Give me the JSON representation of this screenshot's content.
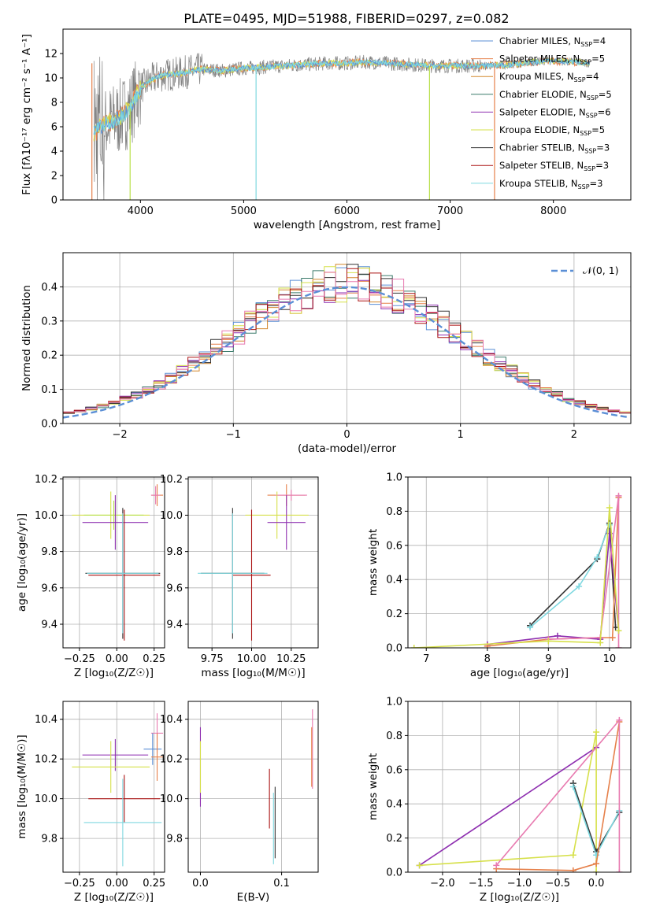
{
  "figure": {
    "title": "PLATE=0495, MJD=51988, FIBERID=0297, z=0.082"
  },
  "colors": {
    "chabrier_miles": "#5b8fd6",
    "salpeter_miles": "#e6804a",
    "kroupa_miles": "#d4882e",
    "chabrier_elodie": "#3a7a6a",
    "salpeter_elodie": "#8e2fb0",
    "kroupa_elodie": "#d6e04a",
    "chabrier_stelib": "#333333",
    "salpeter_stelib": "#aa1111",
    "kroupa_stelib": "#7fd8e0",
    "gray_data": "#808080",
    "pink": "#e87ab0",
    "lime": "#b8e04a",
    "gaussian": "#5b8fd6"
  },
  "chart_data": [
    {
      "id": "spectrum",
      "type": "line",
      "xlabel": "wavelength [Angstrom, rest frame]",
      "ylabel": "Flux [fλ10⁻¹⁷ erg cm⁻² s⁻¹ A⁻¹]",
      "xlim": [
        3250,
        8750
      ],
      "ylim": [
        0,
        14
      ],
      "xticks": [
        "4000",
        "5000",
        "6000",
        "7000",
        "8000"
      ],
      "yticks": [
        "0",
        "2",
        "4",
        "6",
        "8",
        "10",
        "12"
      ],
      "legend_position": "top-right",
      "legend": [
        "Chabrier MILES, N_SSP=4",
        "Salpeter MILES, N_SSP=5",
        "Kroupa MILES, N_SSP=4",
        "Chabrier ELODIE, N_SSP=5",
        "Salpeter ELODIE, N_SSP=6",
        "Kroupa ELODIE, N_SSP=5",
        "Chabrier STELIB, N_SSP=3",
        "Salpeter STELIB, N_SSP=3",
        "Kroupa STELIB, N_SSP=3"
      ],
      "continuum": {
        "x": [
          3550,
          3600,
          3700,
          3800,
          3900,
          4000,
          4100,
          4200,
          4300,
          4400,
          4500,
          4600,
          4800,
          5000,
          5200,
          5400,
          5600,
          5800,
          6000,
          6200,
          6400,
          6600,
          6800,
          7000,
          7200,
          7400,
          7600,
          7800,
          8000,
          8200,
          8350
        ],
        "y": [
          5.5,
          6.0,
          6.3,
          6.8,
          7.5,
          9.2,
          9.8,
          10.2,
          10.3,
          10.4,
          10.6,
          10.7,
          10.6,
          10.8,
          10.9,
          11.0,
          11.1,
          11.2,
          11.2,
          11.3,
          11.2,
          11.1,
          11.0,
          11.0,
          11.0,
          11.0,
          11.1,
          11.3,
          11.4,
          11.3,
          11.2
        ]
      }
    },
    {
      "id": "residuals",
      "type": "line",
      "xlabel": "(data-model)/error",
      "ylabel": "Normed distribution",
      "xlim": [
        -2.5,
        2.5
      ],
      "ylim": [
        0,
        0.5
      ],
      "xticks": [
        "−2",
        "−1",
        "0",
        "1",
        "2"
      ],
      "yticks": [
        "0.0",
        "0.1",
        "0.2",
        "0.3",
        "0.4"
      ],
      "grid": true,
      "legend_position": "top-right",
      "legend": [
        "𝒩(0, 1)"
      ],
      "gaussian": {
        "mean": 0,
        "sigma": 1
      }
    },
    {
      "id": "age_vs_Z",
      "type": "scatter",
      "xlabel": "Z [log₁₀(Z/Z☉)]",
      "ylabel": "age  [log₁₀(age/yr)]",
      "xlim": [
        -0.36,
        0.32
      ],
      "ylim": [
        9.27,
        10.21
      ],
      "xticks": [
        "−0.25",
        "0.00",
        "0.25"
      ],
      "yticks": [
        "9.4",
        "9.6",
        "9.8",
        "10.0",
        "10.2"
      ],
      "grid": true,
      "points": [
        {
          "x": 0.27,
          "y": 10.11,
          "xerr": 0.04,
          "yerr": 0.06,
          "c": "salpeter_miles"
        },
        {
          "x": 0.26,
          "y": 10.11,
          "xerr": 0.03,
          "yerr": 0.05,
          "c": "pink"
        },
        {
          "x": -0.04,
          "y": 10.0,
          "xerr": 0.26,
          "yerr": 0.13,
          "c": "kroupa_elodie"
        },
        {
          "x": -0.02,
          "y": 10.0,
          "xerr": 0.2,
          "yerr": 0.08,
          "c": "lime"
        },
        {
          "x": -0.01,
          "y": 9.96,
          "xerr": 0.22,
          "yerr": 0.15,
          "c": "salpeter_elodie"
        },
        {
          "x": 0.04,
          "y": 9.68,
          "xerr": 0.25,
          "yerr": 0.36,
          "c": "chabrier_stelib"
        },
        {
          "x": 0.05,
          "y": 9.67,
          "xerr": 0.24,
          "yerr": 0.36,
          "c": "salpeter_stelib"
        },
        {
          "x": 0.04,
          "y": 9.68,
          "xerr": 0.24,
          "yerr": 0.33,
          "c": "kroupa_stelib"
        }
      ]
    },
    {
      "id": "age_vs_mass",
      "type": "scatter",
      "xlabel": "mass [log₁₀(M/M☉)]",
      "ylabel": "",
      "xlim": [
        9.6,
        10.42
      ],
      "ylim": [
        9.27,
        10.21
      ],
      "xticks": [
        "9.75",
        "10.00",
        "10.25"
      ],
      "yticks": [
        "9.4",
        "9.6",
        "9.8",
        "10.0",
        "10.2"
      ],
      "grid": true,
      "points": [
        {
          "x": 10.22,
          "y": 10.11,
          "xerr": 0.12,
          "yerr": 0.06,
          "c": "salpeter_miles"
        },
        {
          "x": 10.25,
          "y": 10.11,
          "xerr": 0.1,
          "yerr": 0.03,
          "c": "pink"
        },
        {
          "x": 10.16,
          "y": 10.0,
          "xerr": 0.2,
          "yerr": 0.13,
          "c": "kroupa_elodie"
        },
        {
          "x": 10.22,
          "y": 9.96,
          "xerr": 0.12,
          "yerr": 0.15,
          "c": "salpeter_elodie"
        },
        {
          "x": 9.88,
          "y": 9.68,
          "xerr": 0.2,
          "yerr": 0.36,
          "c": "chabrier_stelib"
        },
        {
          "x": 10.0,
          "y": 9.67,
          "xerr": 0.12,
          "yerr": 0.36,
          "c": "salpeter_stelib"
        },
        {
          "x": 9.88,
          "y": 9.68,
          "xerr": 0.22,
          "yerr": 0.33,
          "c": "kroupa_stelib"
        }
      ]
    },
    {
      "id": "weight_vs_age",
      "type": "line",
      "xlabel": "age  [log₁₀(age/yr)]",
      "ylabel": "mass weight",
      "xlim": [
        6.7,
        10.35
      ],
      "ylim": [
        0,
        1.0
      ],
      "xticks": [
        "7",
        "8",
        "9",
        "10"
      ],
      "yticks": [
        "0.0",
        "0.2",
        "0.4",
        "0.6",
        "0.8",
        "1.0"
      ],
      "grid": true,
      "series": [
        {
          "c": "chabrier_stelib",
          "x": [
            8.7,
            9.8,
            10.0,
            10.1
          ],
          "y": [
            0.13,
            0.52,
            0.73,
            0.12
          ]
        },
        {
          "c": "kroupa_stelib",
          "x": [
            8.7,
            9.5,
            9.8,
            10.0
          ],
          "y": [
            0.12,
            0.36,
            0.53,
            0.72
          ]
        },
        {
          "c": "salpeter_elodie",
          "x": [
            8.0,
            9.15,
            9.85,
            10.0,
            10.15
          ],
          "y": [
            0.02,
            0.07,
            0.05,
            0.67,
            0.1
          ]
        },
        {
          "c": "salpeter_miles",
          "x": [
            8.0,
            9.0,
            9.85,
            10.05,
            10.15
          ],
          "y": [
            0.01,
            0.05,
            0.06,
            0.06,
            0.88
          ]
        },
        {
          "c": "pink",
          "x": [
            9.0,
            9.85,
            10.15,
            10.15
          ],
          "y": [
            0.05,
            0.06,
            0.89,
            0.0
          ]
        },
        {
          "c": "kroupa_elodie",
          "x": [
            6.8,
            9.0,
            9.85,
            10.0,
            10.15
          ],
          "y": [
            0.0,
            0.04,
            0.03,
            0.82,
            0.1
          ]
        }
      ]
    },
    {
      "id": "mass_vs_Z",
      "type": "scatter",
      "xlabel": "Z [log₁₀(Z/Z☉)]",
      "ylabel": "mass [log₁₀(M/M☉)]",
      "xlim": [
        -0.36,
        0.32
      ],
      "ylim": [
        9.63,
        10.49
      ],
      "xticks": [
        "−0.25",
        "0.00",
        "0.25"
      ],
      "yticks": [
        "9.8",
        "10.0",
        "10.2",
        "10.4"
      ],
      "grid": true,
      "points": [
        {
          "x": 0.27,
          "y": 10.33,
          "xerr": 0.04,
          "yerr": 0.1,
          "c": "pink"
        },
        {
          "x": 0.24,
          "y": 10.25,
          "xerr": 0.06,
          "yerr": 0.08,
          "c": "chabrier_miles"
        },
        {
          "x": 0.27,
          "y": 10.21,
          "xerr": 0.04,
          "yerr": 0.12,
          "c": "salpeter_miles"
        },
        {
          "x": -0.01,
          "y": 10.22,
          "xerr": 0.22,
          "yerr": 0.08,
          "c": "salpeter_elodie"
        },
        {
          "x": -0.04,
          "y": 10.16,
          "xerr": 0.26,
          "yerr": 0.13,
          "c": "kroupa_elodie"
        },
        {
          "x": 0.05,
          "y": 10.0,
          "xerr": 0.24,
          "yerr": 0.12,
          "c": "salpeter_stelib"
        },
        {
          "x": 0.04,
          "y": 9.88,
          "xerr": 0.26,
          "yerr": 0.22,
          "c": "kroupa_stelib"
        }
      ]
    },
    {
      "id": "mass_vs_ebv",
      "type": "scatter",
      "xlabel": "E(B-V)",
      "ylabel": "",
      "xlim": [
        -0.015,
        0.145
      ],
      "ylim": [
        9.63,
        10.49
      ],
      "xticks": [
        "0.0",
        "0.1"
      ],
      "yticks": [
        "9.8",
        "10.0",
        "10.2",
        "10.4"
      ],
      "grid": true,
      "points": [
        {
          "x": 0.0,
          "y": 10.16,
          "yerr": 0.2,
          "c": "salpeter_elodie"
        },
        {
          "x": 0.0,
          "y": 10.16,
          "yerr": 0.13,
          "c": "kroupa_elodie"
        },
        {
          "x": 0.085,
          "y": 10.0,
          "yerr": 0.15,
          "c": "salpeter_stelib"
        },
        {
          "x": 0.092,
          "y": 9.88,
          "yerr": 0.18,
          "c": "chabrier_stelib"
        },
        {
          "x": 0.09,
          "y": 9.85,
          "yerr": 0.18,
          "c": "kroupa_stelib"
        },
        {
          "x": 0.138,
          "y": 10.25,
          "yerr": 0.2,
          "c": "pink"
        },
        {
          "x": 0.137,
          "y": 10.21,
          "yerr": 0.15,
          "c": "salpeter_miles"
        }
      ]
    },
    {
      "id": "weight_vs_Z",
      "type": "line",
      "xlabel": "Z [log₁₀(Z/Z☉)]",
      "ylabel": "mass weight",
      "xlim": [
        -2.45,
        0.45
      ],
      "ylim": [
        0,
        1.0
      ],
      "xticks": [
        "−2.0",
        "−1.5",
        "−1.0",
        "−0.5",
        "0.0"
      ],
      "yticks": [
        "0.0",
        "0.2",
        "0.4",
        "0.6",
        "0.8",
        "1.0"
      ],
      "grid": true,
      "series": [
        {
          "c": "salpeter_elodie",
          "x": [
            -2.3,
            0.0
          ],
          "y": [
            0.04,
            0.73
          ]
        },
        {
          "c": "kroupa_elodie",
          "x": [
            -2.3,
            -0.3,
            0.0,
            0.0
          ],
          "y": [
            0.04,
            0.1,
            0.82,
            0.0
          ]
        },
        {
          "c": "chabrier_stelib",
          "x": [
            -0.3,
            0.0,
            0.3
          ],
          "y": [
            0.52,
            0.12,
            0.35
          ]
        },
        {
          "c": "kroupa_stelib",
          "x": [
            -0.3,
            0.0,
            0.3
          ],
          "y": [
            0.5,
            0.1,
            0.36
          ]
        },
        {
          "c": "salpeter_miles",
          "x": [
            -1.3,
            -0.3,
            0.0,
            0.3
          ],
          "y": [
            0.02,
            0.01,
            0.05,
            0.88
          ]
        },
        {
          "c": "pink",
          "x": [
            -1.3,
            0.3,
            0.3
          ],
          "y": [
            0.04,
            0.89,
            0.0
          ]
        }
      ]
    }
  ]
}
